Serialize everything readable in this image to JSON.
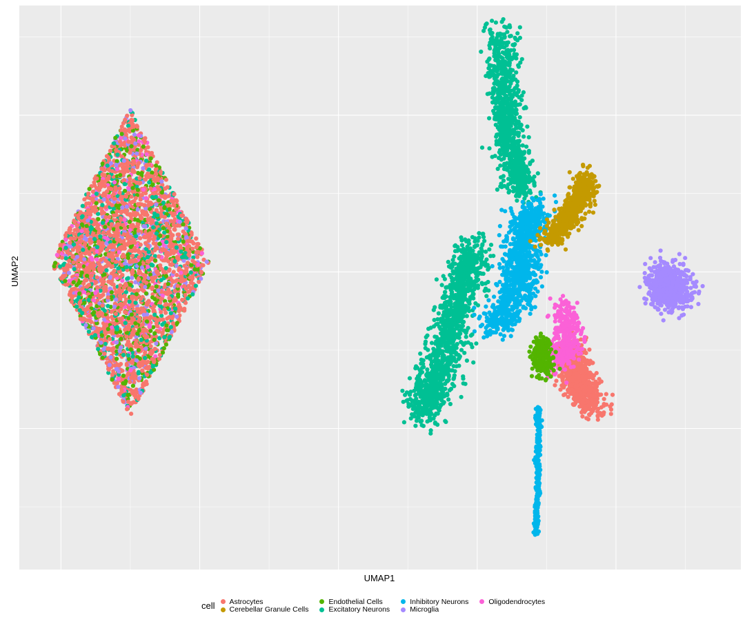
{
  "chart_data": {
    "type": "scatter",
    "title": "",
    "xlabel": "UMAP1",
    "ylabel": "UMAP2",
    "legend_title": "cell",
    "legend_position": "bottom",
    "grid": true,
    "xlim": [
      -11.5,
      14.5
    ],
    "ylim": [
      -9.5,
      8.5
    ],
    "categories": [
      {
        "name": "Astrocytes",
        "color": "#F8766D"
      },
      {
        "name": "Cerebellar Granule Cells",
        "color": "#C49A00"
      },
      {
        "name": "Endothelial Cells",
        "color": "#53B400"
      },
      {
        "name": "Excitatory Neurons",
        "color": "#00C094"
      },
      {
        "name": "Inhibitory Neurons",
        "color": "#00B6EB"
      },
      {
        "name": "Microglia",
        "color": "#A58AFF"
      },
      {
        "name": "Oligodendrocytes",
        "color": "#FB61D7"
      }
    ],
    "clusters": [
      {
        "label": "mixed-diamond",
        "shape": "diamond",
        "center": [
          -7.5,
          0.3
        ],
        "half_width": 2.85,
        "half_height": 4.9,
        "n": 3600,
        "weights": {
          "Astrocytes": 0.58,
          "Endothelial Cells": 0.15,
          "Excitatory Neurons": 0.12,
          "Microglia": 0.09,
          "Oligodendrocytes": 0.06
        }
      },
      {
        "label": "Excitatory Neurons",
        "shape": "blob",
        "path": [
          [
            5.8,
            7.8
          ],
          [
            6.0,
            5.5
          ],
          [
            6.2,
            3.8
          ],
          [
            6.6,
            2.6
          ]
        ],
        "sd": 0.28,
        "n": 900
      },
      {
        "label": "Excitatory Neurons",
        "shape": "blob",
        "path": [
          [
            4.9,
            0.8
          ],
          [
            4.3,
            -1.0
          ],
          [
            3.6,
            -3.2
          ],
          [
            3.0,
            -4.5
          ]
        ],
        "sd": 0.32,
        "n": 1300
      },
      {
        "label": "Inhibitory Neurons",
        "shape": "blob",
        "path": [
          [
            7.0,
            2.0
          ],
          [
            6.6,
            0.8
          ],
          [
            6.5,
            -0.5
          ],
          [
            5.6,
            -1.8
          ]
        ],
        "sd": 0.33,
        "n": 1000
      },
      {
        "label": "Cerebellar Granule Cells",
        "shape": "blob",
        "path": [
          [
            9.0,
            3.0
          ],
          [
            8.4,
            1.8
          ],
          [
            7.6,
            1.0
          ]
        ],
        "sd": 0.22,
        "n": 600
      },
      {
        "label": "Microglia",
        "shape": "blob",
        "path": [
          [
            11.7,
            -0.3
          ],
          [
            12.1,
            -0.7
          ]
        ],
        "sd": 0.35,
        "n": 700
      },
      {
        "label": "Astrocytes",
        "shape": "blob",
        "path": [
          [
            8.3,
            -2.4
          ],
          [
            8.6,
            -3.5
          ],
          [
            9.2,
            -4.3
          ]
        ],
        "sd": 0.28,
        "n": 700
      },
      {
        "label": "Oligodendrocytes",
        "shape": "blob",
        "path": [
          [
            8.2,
            -1.0
          ],
          [
            8.3,
            -2.3
          ],
          [
            7.9,
            -2.8
          ]
        ],
        "sd": 0.25,
        "n": 350
      },
      {
        "label": "Endothelial Cells",
        "shape": "blob",
        "path": [
          [
            7.3,
            -2.2
          ],
          [
            7.4,
            -3.2
          ]
        ],
        "sd": 0.18,
        "n": 220
      },
      {
        "label": "Inhibitory Neurons",
        "shape": "blob",
        "path": [
          [
            7.2,
            -4.3
          ],
          [
            7.2,
            -6.5
          ],
          [
            7.1,
            -8.4
          ]
        ],
        "sd": 0.05,
        "n": 260
      }
    ]
  },
  "legend": {
    "title": "cell",
    "items": [
      "Astrocytes",
      "Cerebellar Granule Cells",
      "Endothelial Cells",
      "Excitatory Neurons",
      "Inhibitory Neurons",
      "Microglia",
      "Oligodendrocytes"
    ]
  }
}
